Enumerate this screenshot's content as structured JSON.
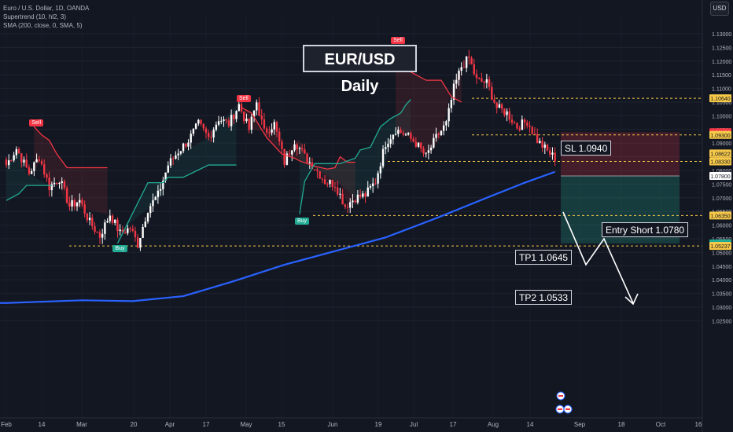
{
  "legend": {
    "symbol": "Euro / U.S. Dollar, 1D, OANDA",
    "supertrend": "Supertrend (10, hl2, 3)",
    "sma": "SMA (200, close, 0, SMA, 5)"
  },
  "currency_button": "USD",
  "annotations": {
    "title": "EUR/USD Daily",
    "sl": "SL 1.0940",
    "entry": "Entry Short 1.0780",
    "tp1": "TP1 1.0645",
    "tp2": "TP2 1.0533"
  },
  "signals": {
    "sell": "Sell",
    "buy": "Buy"
  },
  "colors": {
    "background": "#131722",
    "up_candle": "#ffffff",
    "down_candle": "#f23645",
    "supertrend_up": "#22ab94",
    "supertrend_down": "#f23645",
    "sma": "#2962ff",
    "stop_zone": "rgba(242,54,69,0.22)",
    "profit_zone": "rgba(34,171,148,0.25)"
  },
  "chart_data": {
    "type": "candlestick",
    "y_ticks": [
      "1.13000",
      "1.12500",
      "1.12000",
      "1.11500",
      "1.11000",
      "1.10500",
      "1.10000",
      "1.09500",
      "1.09000",
      "1.08500",
      "1.08000",
      "1.07500",
      "1.07000",
      "1.06500",
      "1.06000",
      "1.05500",
      "1.05000",
      "1.04500",
      "1.04000",
      "1.03500",
      "1.03000",
      "1.02500"
    ],
    "x_ticks": [
      "Feb",
      "14",
      "Mar",
      "20",
      "Apr",
      "17",
      "May",
      "15",
      "Jun",
      "19",
      "Jul",
      "17",
      "Aug",
      "14",
      "Sep",
      "18",
      "Oct",
      "16"
    ],
    "price_labels": [
      {
        "text": "1.10640",
        "value": 1.1064,
        "color": "#f7c948"
      },
      {
        "text": "1.09400",
        "value": 1.094,
        "color": "#f23645"
      },
      {
        "text": "1.09300",
        "value": 1.093,
        "color": "#f7c948"
      },
      {
        "text": "1.08622",
        "value": 1.08622,
        "color": "#f7c948"
      },
      {
        "text": "1.08330",
        "value": 1.0833,
        "color": "#f7c948"
      },
      {
        "text": "1.07800",
        "value": 1.078,
        "color": "#ffffff"
      },
      {
        "text": "1.06350",
        "value": 1.0635,
        "color": "#f7c948"
      },
      {
        "text": "1.05330",
        "value": 1.0533,
        "color": "#22ab94"
      },
      {
        "text": "1.05237",
        "value": 1.05237,
        "color": "#f7c948"
      }
    ],
    "levels": [
      1.1064,
      1.093,
      1.0833,
      1.0635,
      1.05237
    ],
    "trade": {
      "entry": 1.078,
      "stop": 1.094,
      "tp1": 1.0645,
      "tp2": 1.0533
    },
    "anchors": [
      [
        0,
        1.082
      ],
      [
        4,
        1.088
      ],
      [
        9,
        1.079
      ],
      [
        13,
        1.085
      ],
      [
        17,
        1.074
      ],
      [
        21,
        1.077
      ],
      [
        25,
        1.067
      ],
      [
        29,
        1.069
      ],
      [
        33,
        1.061
      ],
      [
        37,
        1.056
      ],
      [
        41,
        1.064
      ],
      [
        45,
        1.057
      ],
      [
        49,
        1.059
      ],
      [
        52,
        1.053
      ],
      [
        56,
        1.066
      ],
      [
        60,
        1.071
      ],
      [
        64,
        1.082
      ],
      [
        68,
        1.087
      ],
      [
        72,
        1.091
      ],
      [
        76,
        1.097
      ],
      [
        80,
        1.092
      ],
      [
        84,
        1.099
      ],
      [
        88,
        1.097
      ],
      [
        92,
        1.104
      ],
      [
        96,
        1.095
      ],
      [
        99,
        1.105
      ],
      [
        102,
        1.094
      ],
      [
        106,
        1.097
      ],
      [
        110,
        1.083
      ],
      [
        114,
        1.091
      ],
      [
        118,
        1.085
      ],
      [
        122,
        1.081
      ],
      [
        126,
        1.076
      ],
      [
        130,
        1.075
      ],
      [
        134,
        1.067
      ],
      [
        138,
        1.07
      ],
      [
        142,
        1.071
      ],
      [
        146,
        1.076
      ],
      [
        150,
        1.09
      ],
      [
        154,
        1.095
      ],
      [
        158,
        1.093
      ],
      [
        162,
        1.09
      ],
      [
        166,
        1.085
      ],
      [
        170,
        1.092
      ],
      [
        174,
        1.097
      ],
      [
        177,
        1.11
      ],
      [
        180,
        1.118
      ],
      [
        183,
        1.121
      ],
      [
        186,
        1.113
      ],
      [
        190,
        1.112
      ],
      [
        194,
        1.103
      ],
      [
        198,
        1.101
      ],
      [
        202,
        1.096
      ],
      [
        206,
        1.098
      ],
      [
        210,
        1.091
      ],
      [
        214,
        1.087
      ],
      [
        217,
        1.0845
      ]
    ],
    "sma_anchors": [
      [
        0,
        1.0315
      ],
      [
        30,
        1.0325
      ],
      [
        50,
        1.0322
      ],
      [
        70,
        1.034
      ],
      [
        90,
        1.0395
      ],
      [
        110,
        1.0455
      ],
      [
        130,
        1.0505
      ],
      [
        150,
        1.0555
      ],
      [
        170,
        1.0625
      ],
      [
        190,
        1.07
      ],
      [
        205,
        1.0755
      ],
      [
        217,
        1.0795
      ]
    ],
    "supertrend": [
      {
        "dir": "up",
        "pts": [
          [
            0,
            1.069
          ],
          [
            5,
            1.0715
          ],
          [
            8,
            1.0745
          ],
          [
            18,
            1.0745
          ]
        ]
      },
      {
        "dir": "down",
        "pts": [
          [
            11,
            1.096
          ],
          [
            14,
            1.093
          ],
          [
            17,
            1.091
          ],
          [
            20,
            1.086
          ],
          [
            24,
            1.081
          ],
          [
            40,
            1.081
          ]
        ]
      },
      {
        "dir": "up",
        "pts": [
          [
            44,
            1.0533
          ],
          [
            56,
            1.0755
          ],
          [
            62,
            1.0755
          ],
          [
            64,
            1.0775
          ],
          [
            70,
            1.0775
          ],
          [
            80,
            1.082
          ],
          [
            91,
            1.082
          ]
        ]
      },
      {
        "dir": "down",
        "pts": [
          [
            93,
            1.103
          ],
          [
            97,
            1.101
          ],
          [
            103,
            1.092
          ],
          [
            107,
            1.088
          ],
          [
            109,
            1.086
          ],
          [
            114,
            1.0845
          ],
          [
            116,
            1.0835
          ],
          [
            119,
            1.0825
          ],
          [
            122,
            1.0815
          ],
          [
            127,
            1.0805
          ],
          [
            130,
            1.081
          ],
          [
            132,
            1.085
          ],
          [
            135,
            1.083
          ],
          [
            138,
            1.083
          ]
        ]
      },
      {
        "dir": "up",
        "pts": [
          [
            116,
            1.064
          ],
          [
            118,
            1.076
          ],
          [
            122,
            1.0825
          ],
          [
            132,
            1.0825
          ],
          [
            138,
            1.0845
          ],
          [
            140,
            1.0875
          ],
          [
            144,
            1.0885
          ],
          [
            148,
            1.096
          ],
          [
            152,
            1.099
          ],
          [
            156,
            1.101
          ],
          [
            158,
            1.104
          ],
          [
            160,
            1.106
          ]
        ]
      },
      {
        "dir": "down",
        "pts": [
          [
            154,
            1.125
          ],
          [
            158,
            1.117
          ],
          [
            162,
            1.115
          ],
          [
            166,
            1.113
          ],
          [
            172,
            1.113
          ],
          [
            176,
            1.107
          ],
          [
            180,
            1.105
          ]
        ]
      }
    ],
    "sell_signals": [
      [
        11,
        1.097
      ],
      [
        93,
        1.106
      ],
      [
        154,
        1.127
      ]
    ],
    "buy_signals": [
      [
        44,
        1.051
      ],
      [
        116,
        1.061
      ]
    ]
  }
}
